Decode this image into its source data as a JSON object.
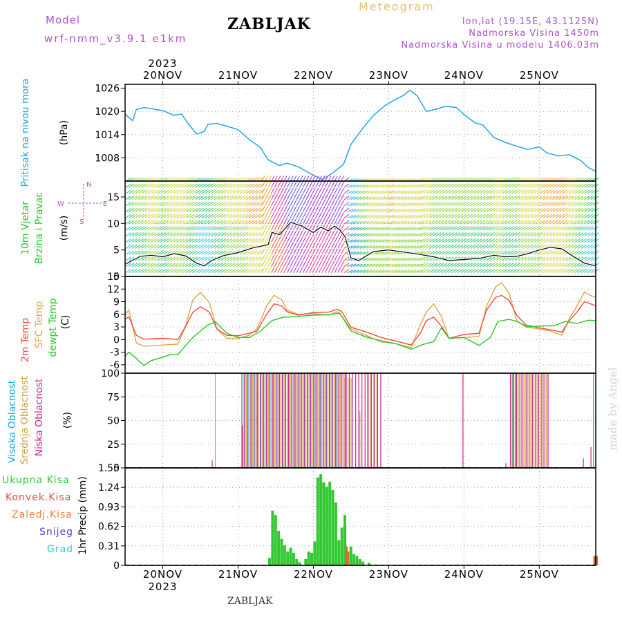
{
  "header": {
    "model_label": "Model",
    "model_name": "wrf-nmm_v3.9.1 e1km",
    "station": "ZABLJAK",
    "product": "Meteogram",
    "lonlat": "lon,lat (19.15E, 43.1125N)",
    "altitude": "Nadmorska Visina 1450m",
    "model_altitude": "Nadmorska Visina u modelu 1406.03m"
  },
  "footer": {
    "station": "ZABLJAK",
    "watermark": "made by Angel"
  },
  "colors": {
    "pressure": "#1ea5e6",
    "t2m": "#f04a3c",
    "sfc": "#dca846",
    "dewpt": "#22c822",
    "high_cloud": "#19a8e0",
    "mid_cloud": "#d4a33a",
    "low_cloud": "#c8288c",
    "total_precip": "#32c832",
    "conv_precip": "#f04646",
    "freezing_rain": "#f0823c",
    "snow": "#4646dc",
    "hail": "#32c8c8",
    "purple_text": "#b050d0"
  },
  "chart_data": [
    {
      "id": "time_axis",
      "type": "line",
      "year": "2023",
      "categories": [
        "20NOV",
        "21NOV",
        "22NOV",
        "23NOV",
        "24NOV",
        "25NOV"
      ],
      "x_range_days": [
        19.5,
        25.75
      ]
    },
    {
      "id": "pressure",
      "type": "line",
      "ylabel": "Pritisak na nivou mora",
      "unit": "(hPa)",
      "ylim": [
        1002,
        1027
      ],
      "yticks": [
        "1026",
        "1020",
        "1014",
        "1008"
      ],
      "series": [
        {
          "values_x": [
            19.5,
            19.6,
            19.65,
            19.75,
            19.85,
            20.0,
            20.15,
            20.25,
            20.35,
            20.45,
            20.55,
            20.6,
            20.72,
            20.85,
            21.0,
            21.12,
            21.3,
            21.4,
            21.55,
            21.65,
            21.8,
            22.0,
            22.12,
            22.25,
            22.4,
            22.5,
            22.65,
            22.8,
            22.95,
            23.08,
            23.2,
            23.28,
            23.38,
            23.5,
            23.62,
            23.75,
            23.9,
            24.0,
            24.15,
            24.25,
            24.4,
            24.55,
            24.7,
            24.85,
            25.0,
            25.1,
            25.25,
            25.4,
            25.55,
            25.65,
            25.75
          ],
          "values": [
            1019.3,
            1017.6,
            1020.5,
            1021.0,
            1020.7,
            1020.2,
            1019.0,
            1019.3,
            1016.5,
            1014.2,
            1014.8,
            1016.7,
            1016.9,
            1016.2,
            1015.3,
            1013.2,
            1010.6,
            1007.5,
            1006.0,
            1006.6,
            1005.7,
            1003.5,
            1002.4,
            1004.0,
            1006.3,
            1011.5,
            1015.5,
            1019.0,
            1021.5,
            1023.0,
            1024.2,
            1025.5,
            1024.0,
            1020.0,
            1020.5,
            1021.3,
            1021.0,
            1019.2,
            1017.0,
            1016.5,
            1013.2,
            1012.0,
            1011.0,
            1010.2,
            1010.8,
            1009.3,
            1008.5,
            1008.8,
            1007.3,
            1005.5,
            1004.5
          ]
        }
      ]
    },
    {
      "id": "wind",
      "type": "line",
      "ylabel": "10m Vjetar",
      "ylabel2": "Brzina i Pravac",
      "unit": "(m/s)",
      "ylim": [
        0,
        18
      ],
      "yticks": [
        "15",
        "10",
        "5",
        "0"
      ],
      "compass": [
        "N",
        "E",
        "S",
        "W"
      ],
      "series": [
        {
          "name": "wind speed",
          "values_x": [
            19.5,
            19.7,
            19.85,
            20.0,
            20.15,
            20.3,
            20.45,
            20.55,
            20.65,
            20.8,
            21.0,
            21.2,
            21.3,
            21.4,
            21.45,
            21.55,
            21.7,
            21.85,
            22.0,
            22.1,
            22.2,
            22.28,
            22.35,
            22.42,
            22.5,
            22.6,
            22.8,
            23.0,
            23.2,
            23.4,
            23.6,
            23.8,
            24.0,
            24.2,
            24.4,
            24.55,
            24.7,
            24.85,
            25.0,
            25.15,
            25.3,
            25.45,
            25.6,
            25.75
          ],
          "values": [
            2.3,
            3.8,
            4.0,
            3.7,
            4.3,
            3.9,
            2.5,
            2.0,
            3.0,
            3.9,
            4.5,
            5.4,
            5.7,
            6.0,
            8.3,
            7.9,
            10.2,
            9.5,
            8.3,
            9.3,
            8.6,
            9.5,
            8.8,
            7.5,
            3.5,
            3.0,
            4.7,
            5.0,
            4.6,
            4.2,
            3.7,
            3.0,
            3.2,
            3.4,
            4.0,
            3.7,
            3.8,
            4.3,
            5.0,
            5.5,
            5.2,
            3.8,
            2.5,
            2.0
          ]
        }
      ],
      "arrow_colors": [
        "#5050e0",
        "#2090e6",
        "#1ec8e6",
        "#22c866",
        "#80d828",
        "#d8d828",
        "#f0a028",
        "#f04a28",
        "#e028a0",
        "#a028e0"
      ]
    },
    {
      "id": "temperature",
      "type": "line",
      "ylabel": [
        "2m Temp",
        "SFC Temp",
        "dewpt Temp"
      ],
      "unit": "(C)",
      "ylim": [
        -8,
        15
      ],
      "yticks": [
        "15",
        "12",
        "9",
        "6",
        "3",
        "0",
        "-3",
        "-6"
      ],
      "series": [
        {
          "name": "2m Temp",
          "values_x": [
            19.5,
            19.55,
            19.65,
            19.75,
            20.0,
            20.2,
            20.3,
            20.4,
            20.5,
            20.62,
            20.72,
            20.85,
            21.0,
            21.15,
            21.25,
            21.38,
            21.48,
            21.58,
            21.65,
            21.8,
            22.0,
            22.2,
            22.32,
            22.38,
            22.5,
            22.7,
            22.9,
            23.1,
            23.3,
            23.42,
            23.5,
            23.6,
            23.7,
            23.8,
            24.0,
            24.2,
            24.3,
            24.42,
            24.5,
            24.6,
            24.7,
            24.82,
            25.0,
            25.15,
            25.3,
            25.4,
            25.5,
            25.6,
            25.68,
            25.75
          ],
          "values": [
            4.8,
            5.4,
            1.0,
            0.1,
            0.3,
            0.0,
            3.0,
            6.5,
            7.8,
            6.5,
            2.5,
            1.0,
            0.9,
            1.5,
            2.0,
            6.0,
            8.5,
            8.0,
            6.6,
            5.8,
            6.4,
            6.5,
            7.2,
            6.6,
            2.9,
            1.8,
            0.5,
            -0.4,
            -1.3,
            1.5,
            4.5,
            5.3,
            3.2,
            0.3,
            1.2,
            1.5,
            7.0,
            10.0,
            10.5,
            9.3,
            5.8,
            3.5,
            2.8,
            2.3,
            1.8,
            4.5,
            6.5,
            9.0,
            8.5,
            8.0
          ]
        },
        {
          "name": "SFC Temp",
          "values_x": [
            19.5,
            19.55,
            19.65,
            19.75,
            20.0,
            20.2,
            20.3,
            20.4,
            20.5,
            20.62,
            20.72,
            20.85,
            21.0,
            21.15,
            21.25,
            21.38,
            21.48,
            21.58,
            21.65,
            21.8,
            22.0,
            22.2,
            22.32,
            22.38,
            22.5,
            22.7,
            22.9,
            23.1,
            23.3,
            23.42,
            23.5,
            23.6,
            23.7,
            23.8,
            24.0,
            24.2,
            24.3,
            24.42,
            24.5,
            24.6,
            24.7,
            24.82,
            25.0,
            25.15,
            25.3,
            25.4,
            25.5,
            25.6,
            25.68,
            25.75
          ],
          "values": [
            6.0,
            7.0,
            -0.8,
            -1.6,
            -1.3,
            -1.1,
            3.0,
            9.5,
            11.2,
            8.8,
            2.5,
            0.3,
            0.3,
            1.0,
            2.5,
            8.0,
            10.5,
            9.5,
            7.0,
            6.0,
            6.2,
            5.8,
            6.6,
            5.5,
            2.5,
            1.0,
            -0.6,
            -1.0,
            -1.9,
            3.5,
            6.5,
            8.5,
            5.5,
            0.3,
            0.5,
            0.7,
            8.0,
            12.5,
            13.5,
            11.0,
            4.5,
            3.0,
            2.5,
            2.0,
            1.0,
            5.0,
            8.0,
            11.3,
            10.5,
            10.0
          ]
        },
        {
          "name": "dewpt Temp",
          "values_x": [
            19.5,
            19.55,
            19.62,
            19.75,
            19.85,
            20.0,
            20.1,
            20.2,
            20.3,
            20.4,
            20.5,
            20.6,
            20.7,
            20.85,
            21.0,
            21.15,
            21.3,
            21.45,
            21.6,
            21.8,
            22.0,
            22.2,
            22.35,
            22.5,
            22.7,
            22.9,
            23.1,
            23.3,
            23.45,
            23.6,
            23.7,
            23.8,
            24.0,
            24.2,
            24.35,
            24.45,
            24.6,
            24.7,
            24.85,
            25.0,
            25.2,
            25.35,
            25.5,
            25.65,
            25.75
          ],
          "values": [
            -4.0,
            -3.0,
            -4.0,
            -6.2,
            -5.0,
            -4.2,
            -3.6,
            -3.6,
            -1.5,
            0.5,
            2.0,
            3.5,
            4.2,
            1.5,
            0.5,
            0.5,
            2.0,
            4.5,
            5.3,
            5.5,
            5.8,
            5.9,
            6.3,
            2.0,
            0.6,
            -0.3,
            -1.0,
            -2.3,
            -1.2,
            -0.5,
            2.8,
            0.3,
            0.5,
            -1.4,
            0.5,
            4.3,
            4.8,
            4.3,
            3.0,
            3.2,
            3.3,
            4.3,
            3.8,
            4.6,
            4.5
          ]
        }
      ]
    },
    {
      "id": "clouds",
      "type": "bar",
      "ylabel": [
        "Visoka Oblacnost",
        "Srednja Oblacnost",
        "Niska Oblacnost"
      ],
      "unit": "(%)",
      "ylim": [
        0,
        100
      ],
      "yticks": [
        "100",
        "75",
        "50",
        "25",
        "0"
      ],
      "series": [
        {
          "name": "Visoka Oblacnost",
          "segments": [
            [
              21.05,
              22.35,
              100
            ],
            [
              24.65,
              24.72,
              100
            ],
            [
              25.72,
              25.75,
              100
            ]
          ]
        },
        {
          "name": "Srednja Oblacnost",
          "segments": [
            [
              20.68,
              20.7,
              100
            ],
            [
              21.05,
              22.4,
              100
            ],
            [
              22.4,
              22.5,
              95
            ],
            [
              22.6,
              22.62,
              60
            ],
            [
              22.7,
              22.85,
              100
            ],
            [
              24.62,
              25.1,
              100
            ]
          ]
        },
        {
          "name": "Niska Oblacnost",
          "segments": [
            [
              20.62,
              20.64,
              8
            ],
            [
              21.02,
              21.04,
              45
            ],
            [
              21.05,
              22.4,
              100
            ],
            [
              22.4,
              22.9,
              100
            ],
            [
              23.95,
              23.97,
              100
            ],
            [
              24.52,
              24.54,
              5
            ],
            [
              24.58,
              25.1,
              100
            ],
            [
              25.55,
              25.57,
              10
            ],
            [
              25.65,
              25.67,
              22
            ]
          ]
        }
      ]
    },
    {
      "id": "precip",
      "type": "bar",
      "ylabel": "1hr Precip (mm)",
      "ylim": [
        0,
        1.55
      ],
      "yticks": [
        "1.55",
        "1.24",
        "0.93",
        "0.62",
        "0.31",
        "0"
      ],
      "legend": [
        "Ukupna Kisa",
        "Konvek.Kisa",
        "Zaledj.Kisa",
        "Snijeg",
        "Grad"
      ],
      "series": [
        {
          "name": "Ukupna Kisa",
          "x": [
            21.4,
            21.44,
            21.48,
            21.52,
            21.56,
            21.6,
            21.64,
            21.68,
            21.72,
            21.76,
            21.8,
            21.88,
            21.92,
            21.96,
            22.0,
            22.04,
            22.08,
            22.12,
            22.16,
            22.2,
            22.24,
            22.28,
            22.32,
            22.36,
            22.4,
            22.48,
            22.52,
            22.56,
            22.6,
            22.64,
            22.72
          ],
          "values": [
            0.12,
            0.87,
            0.8,
            0.55,
            0.42,
            0.32,
            0.22,
            0.28,
            0.2,
            0.1,
            0.05,
            0.1,
            0.22,
            0.2,
            0.38,
            1.4,
            1.45,
            1.32,
            1.25,
            1.33,
            1.2,
            1.0,
            0.4,
            0.6,
            0.8,
            0.3,
            0.18,
            0.15,
            0.1,
            0.06,
            0.04
          ]
        },
        {
          "name": "Konvek.Kisa",
          "x": [
            22.42,
            22.44
          ],
          "values": [
            0.3,
            0.22
          ]
        },
        {
          "name": "Zaledj.Kisa",
          "x": [
            25.72,
            25.74
          ],
          "values": [
            0.15,
            0.15
          ]
        }
      ]
    }
  ]
}
